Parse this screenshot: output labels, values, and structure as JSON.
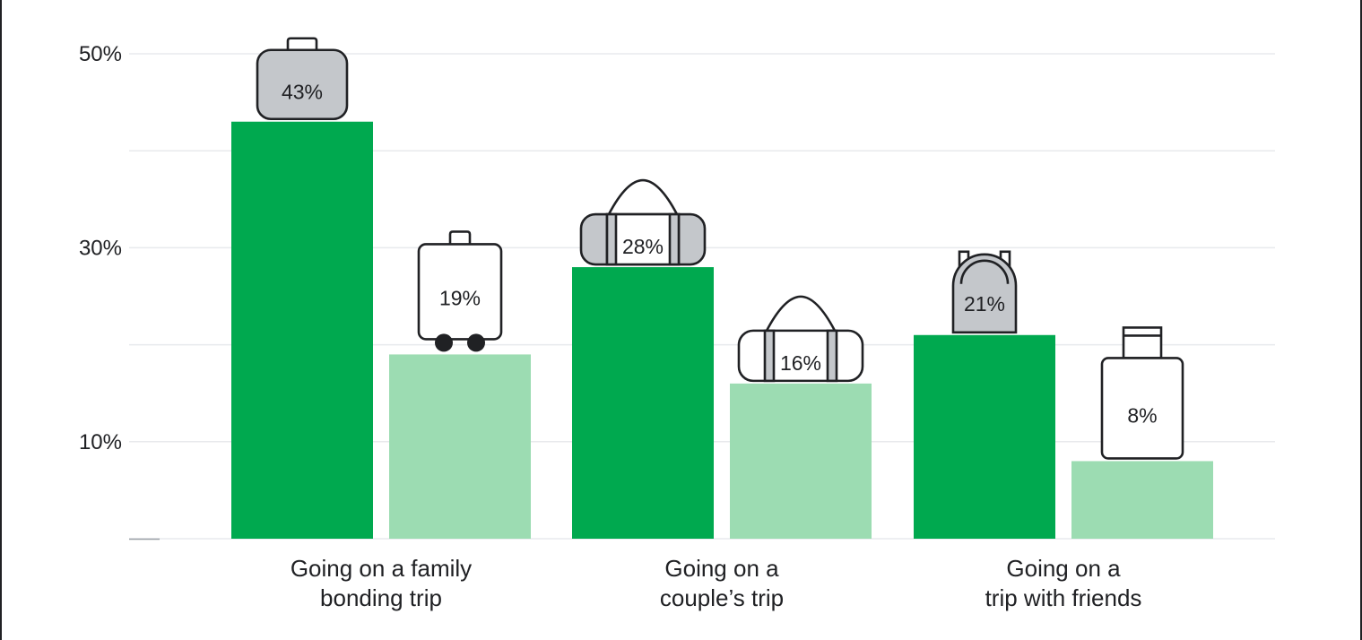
{
  "chart_data": {
    "type": "bar",
    "categories": [
      [
        "Going on a family",
        "bonding trip"
      ],
      [
        "Going on a",
        "couple’s trip"
      ],
      [
        "Going on a",
        "trip with friends"
      ]
    ],
    "series": [
      {
        "values": [
          43,
          28,
          21
        ],
        "labels": [
          "43%",
          "28%",
          "21%"
        ]
      },
      {
        "values": [
          19,
          16,
          8
        ],
        "labels": [
          "19%",
          "16%",
          "8%"
        ]
      }
    ],
    "y_ticks": [
      {
        "value": 50,
        "label": "50%"
      },
      {
        "value": 30,
        "label": "30%"
      },
      {
        "value": 10,
        "label": "10%"
      }
    ],
    "gridlines": [
      0,
      10,
      20,
      30,
      40,
      50
    ],
    "ylim": [
      0,
      50
    ],
    "grid": true,
    "legend": "none",
    "colors": {
      "series_1": "#00a94f",
      "series_2": "#9cdcb2",
      "icon_fill_dark": "#c4c7cb",
      "icon_fill_light": "#ffffff",
      "icon_stroke": "#202124",
      "grid": "#e8eaed"
    },
    "icons": [
      [
        "suitcase-icon",
        "rolling-suitcase-icon"
      ],
      [
        "duffel-bag-icon",
        "duffel-bag-icon"
      ],
      [
        "backpack-icon",
        "carry-on-suitcase-icon"
      ]
    ],
    "icon_fills": [
      [
        "dark",
        "light"
      ],
      [
        "dark",
        "light"
      ],
      [
        "dark",
        "light"
      ]
    ]
  }
}
